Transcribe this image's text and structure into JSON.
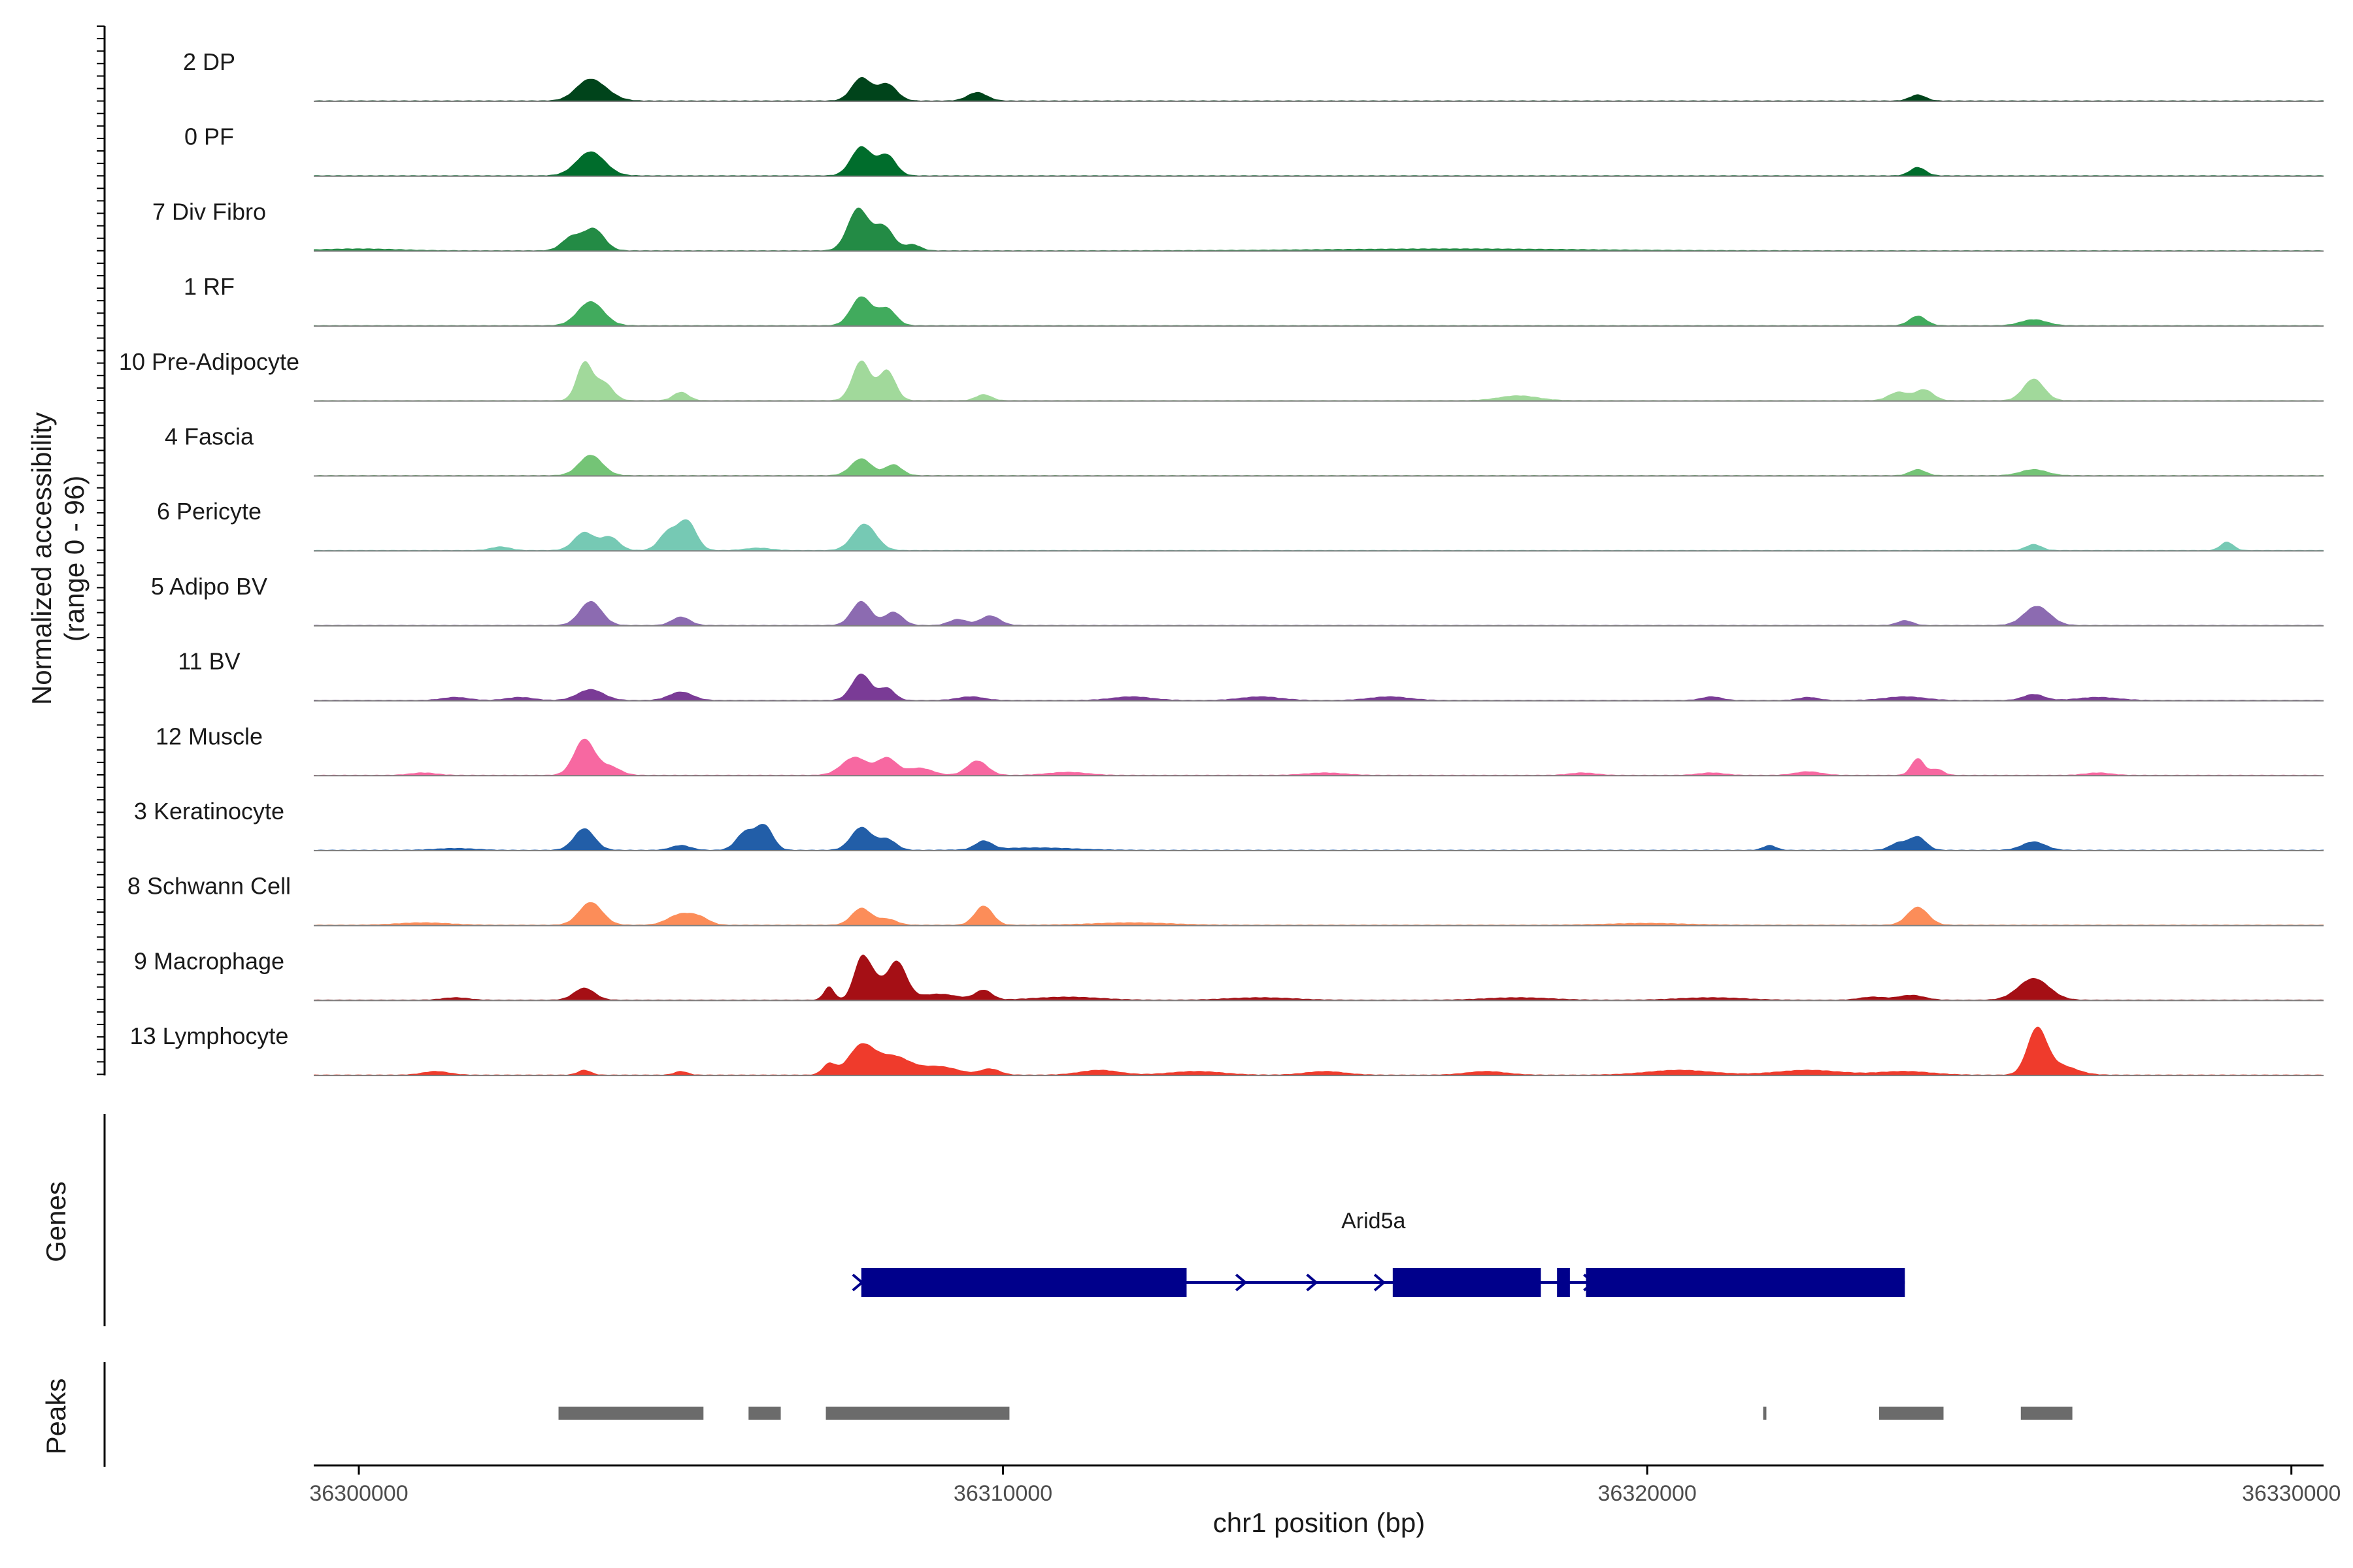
{
  "chart_data": {
    "type": "area",
    "title": "",
    "ylabel_line1": "Normalized accessibility",
    "ylabel_line2": "(range 0 - 96)",
    "yrange": [
      0,
      96
    ],
    "xlabel": "chr1 position (bp)",
    "xlim": [
      36299300,
      36330500
    ],
    "xticks": [
      36300000,
      36310000,
      36320000,
      36330000
    ],
    "xtick_labels": [
      "36300000",
      "36310000",
      "36320000",
      "36330000"
    ],
    "gene_panel_label": "Genes",
    "peak_panel_label": "Peaks",
    "tracks": [
      {
        "name": "2 DP",
        "color": "#00441b",
        "peaks": [
          [
            36303550,
            30,
            200
          ],
          [
            36303800,
            12,
            200
          ],
          [
            36307800,
            38,
            150
          ],
          [
            36308200,
            28,
            150
          ],
          [
            36309600,
            14,
            150
          ],
          [
            36324200,
            10,
            120
          ]
        ]
      },
      {
        "name": "0 PF",
        "color": "#006d2c",
        "peaks": [
          [
            36303600,
            40,
            220
          ],
          [
            36307800,
            48,
            160
          ],
          [
            36308200,
            34,
            140
          ],
          [
            36324200,
            14,
            120
          ]
        ]
      },
      {
        "name": "7 Div Fibro",
        "color": "#238b45",
        "peaks": [
          [
            36303300,
            22,
            150
          ],
          [
            36303650,
            36,
            160
          ],
          [
            36307750,
            70,
            160
          ],
          [
            36308150,
            40,
            150
          ],
          [
            36308600,
            10,
            120
          ],
          [
            36300000,
            3,
            600
          ],
          [
            36317000,
            3,
            2000
          ]
        ]
      },
      {
        "name": "1 RF",
        "color": "#41ab5d",
        "peaks": [
          [
            36303600,
            40,
            200
          ],
          [
            36307800,
            48,
            160
          ],
          [
            36308200,
            28,
            140
          ],
          [
            36324200,
            16,
            130
          ],
          [
            36326000,
            10,
            200
          ]
        ]
      },
      {
        "name": "10 Pre-Adipocyte",
        "color": "#a1d99b",
        "peaks": [
          [
            36303500,
            62,
            120
          ],
          [
            36303800,
            30,
            140
          ],
          [
            36305000,
            14,
            120
          ],
          [
            36307800,
            66,
            140
          ],
          [
            36308200,
            50,
            130
          ],
          [
            36309700,
            10,
            120
          ],
          [
            36323900,
            14,
            150
          ],
          [
            36324300,
            18,
            140
          ],
          [
            36326000,
            36,
            160
          ],
          [
            36318000,
            8,
            300
          ]
        ]
      },
      {
        "name": "4 Fascia",
        "color": "#74c476",
        "peaks": [
          [
            36303600,
            34,
            180
          ],
          [
            36307800,
            28,
            160
          ],
          [
            36308300,
            18,
            130
          ],
          [
            36324200,
            10,
            120
          ],
          [
            36326000,
            10,
            200
          ]
        ]
      },
      {
        "name": "6 Pericyte",
        "color": "#76c9b4",
        "peaks": [
          [
            36303500,
            30,
            160
          ],
          [
            36303900,
            22,
            140
          ],
          [
            36304800,
            30,
            140
          ],
          [
            36305100,
            48,
            140
          ],
          [
            36307850,
            44,
            180
          ],
          [
            36302200,
            6,
            150
          ],
          [
            36306200,
            4,
            200
          ],
          [
            36326000,
            10,
            120
          ],
          [
            36329000,
            14,
            100
          ]
        ]
      },
      {
        "name": "5 Adipo BV",
        "color": "#8c6bb1",
        "peaks": [
          [
            36303600,
            40,
            170
          ],
          [
            36305000,
            14,
            140
          ],
          [
            36307800,
            40,
            150
          ],
          [
            36308300,
            22,
            140
          ],
          [
            36309800,
            16,
            150
          ],
          [
            36309300,
            10,
            140
          ],
          [
            36324000,
            8,
            120
          ],
          [
            36326050,
            32,
            200
          ]
        ]
      },
      {
        "name": "11 BV",
        "color": "#7a3b96",
        "peaks": [
          [
            36303600,
            18,
            200
          ],
          [
            36305000,
            14,
            180
          ],
          [
            36307800,
            44,
            150
          ],
          [
            36308200,
            20,
            120
          ],
          [
            36326000,
            10,
            160
          ],
          [
            36301500,
            5,
            200
          ],
          [
            36302500,
            5,
            200
          ],
          [
            36309500,
            6,
            200
          ],
          [
            36312000,
            6,
            300
          ],
          [
            36314000,
            6,
            300
          ],
          [
            36316000,
            6,
            300
          ],
          [
            36321000,
            6,
            150
          ],
          [
            36322500,
            5,
            150
          ],
          [
            36324000,
            6,
            300
          ],
          [
            36327000,
            5,
            300
          ]
        ]
      },
      {
        "name": "12 Muscle",
        "color": "#f768a1",
        "peaks": [
          [
            36303500,
            60,
            160
          ],
          [
            36303900,
            14,
            160
          ],
          [
            36307700,
            30,
            200
          ],
          [
            36308200,
            28,
            150
          ],
          [
            36308700,
            12,
            200
          ],
          [
            36309600,
            24,
            160
          ],
          [
            36324200,
            28,
            100
          ],
          [
            36324500,
            10,
            100
          ],
          [
            36301000,
            4,
            200
          ],
          [
            36311000,
            5,
            300
          ],
          [
            36315000,
            4,
            300
          ],
          [
            36319000,
            4,
            200
          ],
          [
            36321000,
            4,
            200
          ],
          [
            36322500,
            6,
            200
          ],
          [
            36327000,
            4,
            200
          ]
        ]
      },
      {
        "name": "3 Keratinocyte",
        "color": "#225ea8",
        "peaks": [
          [
            36303500,
            36,
            160
          ],
          [
            36306000,
            30,
            140
          ],
          [
            36306300,
            40,
            130
          ],
          [
            36307800,
            38,
            160
          ],
          [
            36308200,
            18,
            140
          ],
          [
            36309700,
            14,
            130
          ],
          [
            36305000,
            8,
            150
          ],
          [
            36321900,
            8,
            100
          ],
          [
            36323900,
            12,
            130
          ],
          [
            36324200,
            22,
            130
          ],
          [
            36326000,
            14,
            180
          ],
          [
            36301500,
            3,
            300
          ],
          [
            36310500,
            4,
            600
          ]
        ]
      },
      {
        "name": "8 Schwann Cell",
        "color": "#fc8d59",
        "peaks": [
          [
            36303600,
            38,
            180
          ],
          [
            36305000,
            18,
            200
          ],
          [
            36305300,
            10,
            150
          ],
          [
            36307800,
            28,
            150
          ],
          [
            36308200,
            10,
            150
          ],
          [
            36309700,
            32,
            140
          ],
          [
            36324200,
            30,
            160
          ],
          [
            36301000,
            4,
            400
          ],
          [
            36312000,
            4,
            600
          ],
          [
            36320000,
            3,
            600
          ]
        ]
      },
      {
        "name": "9 Macrophage",
        "color": "#a50f15",
        "peaks": [
          [
            36303500,
            20,
            160
          ],
          [
            36307300,
            22,
            80
          ],
          [
            36307800,
            66,
            120
          ],
          [
            36308000,
            30,
            120
          ],
          [
            36308350,
            64,
            150
          ],
          [
            36309000,
            10,
            300
          ],
          [
            36309700,
            16,
            130
          ],
          [
            36324100,
            8,
            200
          ],
          [
            36326000,
            36,
            240
          ],
          [
            36301500,
            4,
            200
          ],
          [
            36311000,
            5,
            500
          ],
          [
            36314000,
            4,
            500
          ],
          [
            36318000,
            4,
            500
          ],
          [
            36321000,
            4,
            500
          ],
          [
            36323500,
            5,
            200
          ]
        ]
      },
      {
        "name": "13 Lymphocyte",
        "color": "#ef3b2c",
        "peaks": [
          [
            36303500,
            8,
            100
          ],
          [
            36307300,
            18,
            100
          ],
          [
            36307800,
            48,
            200
          ],
          [
            36308300,
            30,
            250
          ],
          [
            36309000,
            14,
            300
          ],
          [
            36309800,
            10,
            150
          ],
          [
            36326050,
            74,
            150
          ],
          [
            36326400,
            16,
            250
          ],
          [
            36301200,
            6,
            200
          ],
          [
            36305000,
            6,
            100
          ],
          [
            36311500,
            8,
            300
          ],
          [
            36313000,
            6,
            400
          ],
          [
            36315000,
            6,
            300
          ],
          [
            36317500,
            6,
            300
          ],
          [
            36320500,
            8,
            500
          ],
          [
            36322500,
            8,
            500
          ],
          [
            36324000,
            6,
            400
          ]
        ]
      }
    ],
    "gene": {
      "name": "Arid5a",
      "start": 36307800,
      "end": 36324000,
      "strand": "+",
      "color": "#00008b",
      "exons": [
        [
          36307800,
          36312850
        ],
        [
          36316050,
          36318350
        ],
        [
          36318600,
          36318800
        ],
        [
          36319050,
          36324000
        ]
      ],
      "arrows": [
        36307750,
        36313700,
        36314800,
        36315850,
        36319100
      ]
    },
    "peak_regions": [
      [
        36303100,
        36305350
      ],
      [
        36306050,
        36306550
      ],
      [
        36307250,
        36310100
      ],
      [
        36321800,
        36321850
      ],
      [
        36323600,
        36324600
      ],
      [
        36325800,
        36326600
      ]
    ]
  }
}
